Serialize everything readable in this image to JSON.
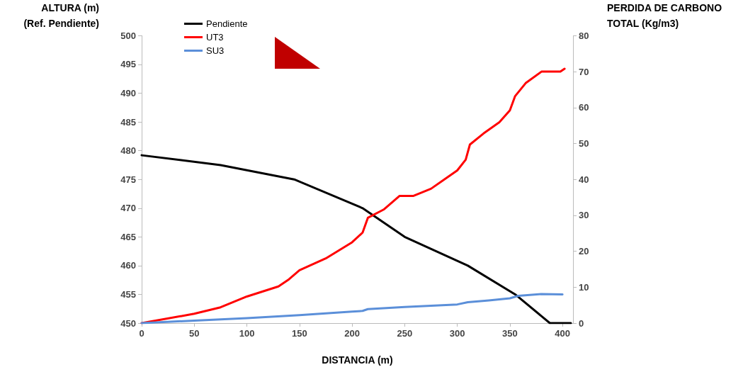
{
  "chart_data": {
    "type": "line",
    "xlabel": "DISTANCIA (m)",
    "ylabel": "ALTURA (m)\n(Ref. Pendiente)",
    "y2label": "PERDIDA DE CARBONO\nTOTAL (Kg/m3)",
    "xlim": [
      0,
      410
    ],
    "xticks": [
      0,
      50,
      100,
      150,
      200,
      250,
      300,
      350,
      400
    ],
    "ylim": [
      450,
      500
    ],
    "yticks": [
      450,
      455,
      460,
      465,
      470,
      475,
      480,
      485,
      490,
      495,
      500
    ],
    "y2lim": [
      0,
      80
    ],
    "y2ticks": [
      0,
      10,
      20,
      30,
      40,
      50,
      60,
      70,
      80
    ],
    "grid": false,
    "legend": "top left",
    "marker": "none",
    "line_style": "solid",
    "series": [
      {
        "name": "Pendiente",
        "color": "#000000",
        "x": [
          0,
          75,
          145,
          210,
          250,
          310,
          355,
          388,
          408
        ],
        "values": [
          479.2,
          477.5,
          475,
          470,
          465,
          460,
          455,
          450,
          450
        ]
      },
      {
        "name": "UT3",
        "color": "#ff0000",
        "axis": "y2",
        "x": [
          0,
          50,
          75,
          100,
          130,
          140,
          150,
          175,
          200,
          210,
          215,
          230,
          245,
          258,
          275,
          300,
          308,
          312,
          325,
          340,
          350,
          355,
          365,
          380,
          398,
          402
        ],
        "values": [
          0,
          2.6,
          4.4,
          7.4,
          10.2,
          12.2,
          14.7,
          18,
          22.5,
          25.2,
          29.3,
          31.6,
          35.4,
          35.4,
          37.4,
          42.5,
          45.5,
          49.7,
          52.8,
          55.9,
          59.2,
          63.2,
          66.8,
          70,
          70,
          70.8
        ]
      },
      {
        "name": "SU3",
        "color": "#5b8fd9",
        "axis": "y2",
        "x": [
          0,
          50,
          100,
          150,
          200,
          210,
          215,
          250,
          300,
          310,
          330,
          350,
          358,
          380,
          400
        ],
        "values": [
          0,
          0.7,
          1.4,
          2.2,
          3.2,
          3.4,
          3.9,
          4.5,
          5.2,
          5.8,
          6.3,
          6.9,
          7.6,
          8.1,
          8
        ]
      }
    ]
  }
}
